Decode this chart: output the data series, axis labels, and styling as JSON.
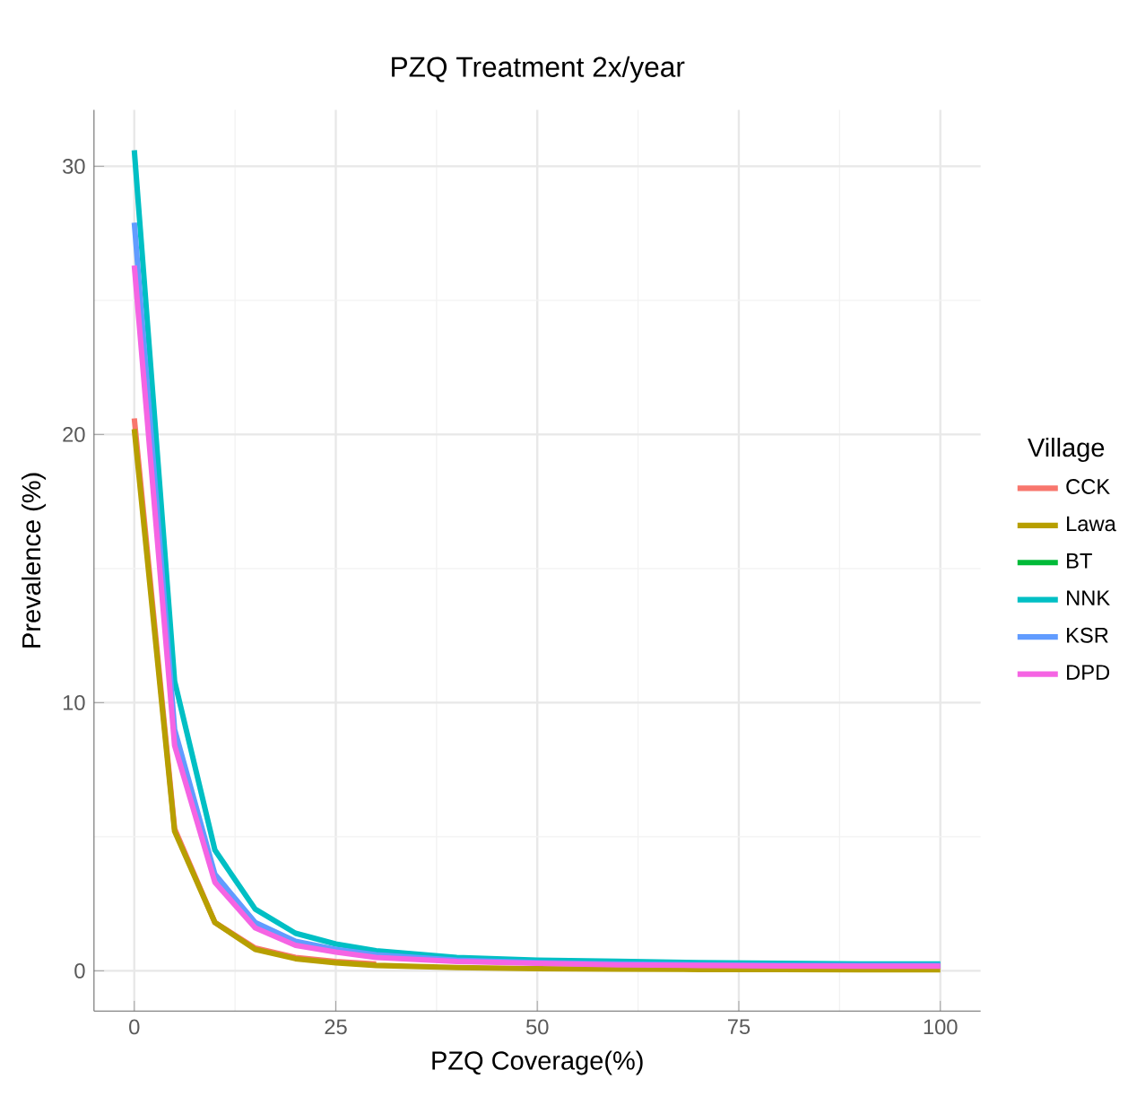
{
  "chart_data": {
    "type": "line",
    "title": "PZQ Treatment 2x/year",
    "xlabel": "PZQ Coverage(%)",
    "ylabel": "Prevalence (%)",
    "legend_title": "Village",
    "x": [
      0,
      5,
      10,
      15,
      20,
      25,
      30,
      40,
      50,
      60,
      70,
      80,
      90,
      100
    ],
    "series": [
      {
        "name": "CCK",
        "color": "#f8766d",
        "values": [
          20.6,
          5.3,
          1.8,
          0.85,
          0.5,
          0.35,
          0.25,
          null,
          null,
          null,
          null,
          null,
          null,
          null
        ]
      },
      {
        "name": "Lawa",
        "color": "#b79f00",
        "values": [
          20.2,
          5.2,
          1.8,
          0.8,
          0.45,
          0.3,
          0.2,
          0.12,
          0.08,
          0.06,
          0.05,
          0.05,
          0.04,
          0.04
        ]
      },
      {
        "name": "BT",
        "color": "#00ba38",
        "values": [
          null,
          null,
          null,
          null,
          null,
          null,
          null,
          null,
          null,
          null,
          null,
          null,
          null,
          null
        ]
      },
      {
        "name": "NNK",
        "color": "#00bfc4",
        "values": [
          30.6,
          10.8,
          4.5,
          2.3,
          1.4,
          1.0,
          0.75,
          0.5,
          0.4,
          0.35,
          0.3,
          0.28,
          0.25,
          0.25
        ]
      },
      {
        "name": "KSR",
        "color": "#619cff",
        "values": [
          27.9,
          9.0,
          3.6,
          1.8,
          1.1,
          0.8,
          0.6,
          0.4,
          0.3,
          0.25,
          0.22,
          0.2,
          0.2,
          0.2
        ]
      },
      {
        "name": "DPD",
        "color": "#f564e3",
        "values": [
          26.3,
          8.4,
          3.3,
          1.6,
          0.95,
          0.7,
          0.5,
          0.35,
          0.28,
          0.22,
          0.2,
          0.18,
          0.17,
          0.17
        ]
      }
    ],
    "xlim": [
      -5,
      105
    ],
    "ylim": [
      -1.5,
      32.1
    ],
    "xticks": [
      0,
      25,
      50,
      75,
      100
    ],
    "yticks": [
      0,
      10,
      20,
      30
    ],
    "grid": true,
    "legend": "right",
    "marker": "none",
    "line_style": "solid"
  }
}
